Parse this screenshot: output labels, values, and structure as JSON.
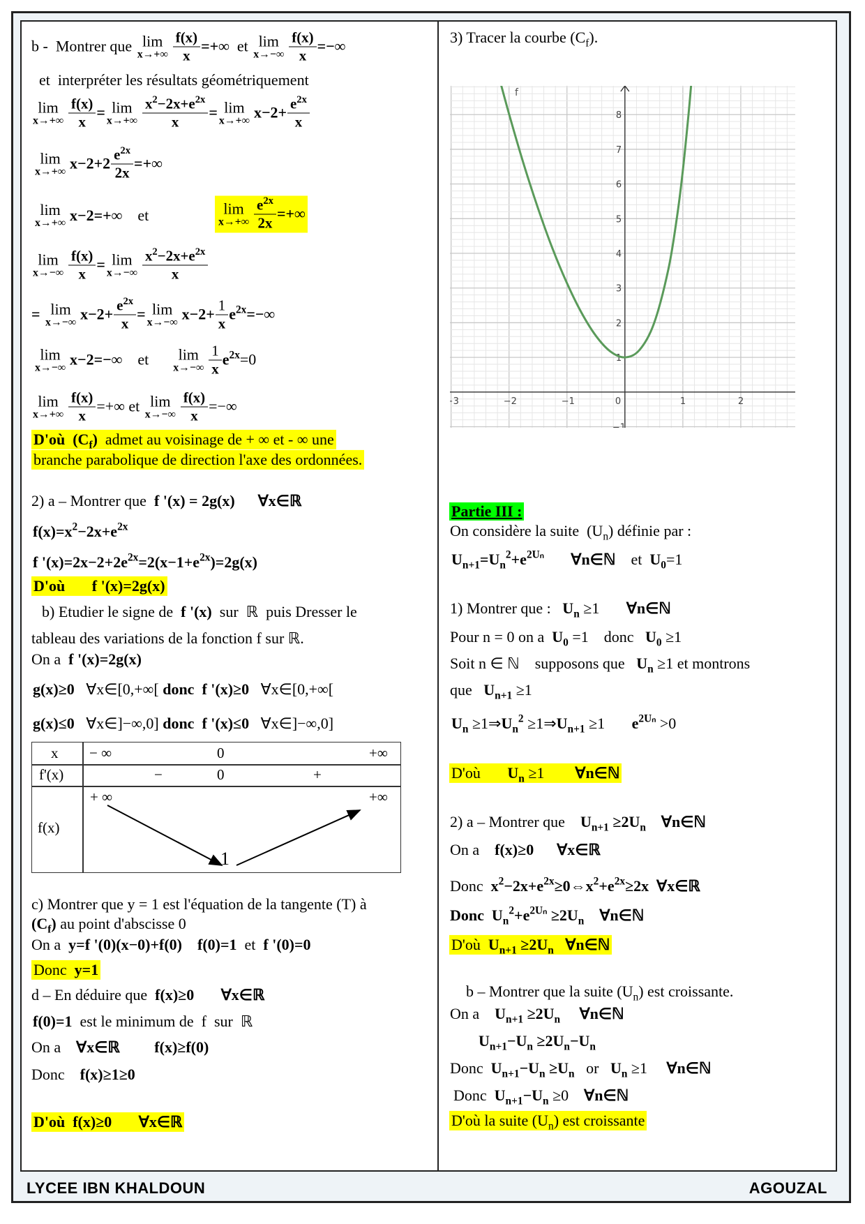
{
  "colors": {
    "highlight": "#ffff00",
    "partie_highlight": "#00ff00",
    "curve": "#5a9a5a"
  },
  "footer": {
    "school": "LYCEE  IBN KHALDOUN",
    "author": "AGOUZAL"
  },
  "left": {
    "lines": [
      [
        "b -  Montrer que ",
        {
          "l": "x→+∞"
        },
        {
          "f": [
            [
              {
                "t": "f(x)",
                "b": 1
              }
            ],
            [
              {
                "t": "x",
                "b": 1
              }
            ]
          ]
        },
        {
          "t": "=+∞",
          "b": 1
        },
        "  et ",
        {
          "l": "x→−∞"
        },
        {
          "f": [
            [
              {
                "t": "f(x)",
                "b": 1
              }
            ],
            [
              {
                "t": "x",
                "b": 1
              }
            ]
          ]
        },
        {
          "t": "=−∞",
          "b": 1
        }
      ],
      [
        "et  interpréter les résultats géométriquement"
      ],
      [
        {
          "l": "x→+∞"
        },
        {
          "f": [
            [
              {
                "t": "f(x)",
                "b": 1
              }
            ],
            [
              {
                "t": "x",
                "b": 1
              }
            ]
          ]
        },
        {
          "t": "=",
          "b": 1
        },
        {
          "l": "x→+∞"
        },
        {
          "f": [
            [
              {
                "t": "x",
                "b": 1,
                "sup": "2"
              },
              {
                "t": "−2x+e",
                "b": 1,
                "sup": "2x"
              }
            ],
            [
              {
                "t": "x",
                "b": 1
              }
            ]
          ]
        },
        {
          "t": "=",
          "b": 1
        },
        {
          "l": "x→+∞"
        },
        {
          "t": "x−2+",
          "b": 1
        },
        {
          "f": [
            [
              {
                "t": "e",
                "b": 1,
                "sup": "2x"
              }
            ],
            [
              {
                "t": "x",
                "b": 1
              }
            ]
          ]
        }
      ],
      [
        {
          "l": "x→+∞"
        },
        {
          "t": "x−2+2",
          "b": 1
        },
        {
          "f": [
            [
              {
                "t": "e",
                "b": 1,
                "sup": "2x"
              }
            ],
            [
              {
                "t": "2x",
                "b": 1
              }
            ]
          ]
        },
        {
          "t": "=+∞",
          "b": 1
        }
      ],
      [
        {
          "l": "x→+∞"
        },
        {
          "t": "x−2=+∞",
          "b": 1
        },
        "    et"
      ],
      [
        {
          "l": "x→+∞"
        },
        {
          "f": [
            [
              {
                "t": "e",
                "b": 1,
                "sup": "2x"
              }
            ],
            [
              {
                "t": "2x",
                "b": 1
              }
            ]
          ]
        },
        {
          "t": "=+∞",
          "b": 1
        }
      ],
      [
        {
          "l": "x→−∞"
        },
        {
          "f": [
            [
              {
                "t": "f(x)",
                "b": 1
              }
            ],
            [
              {
                "t": "x",
                "b": 1
              }
            ]
          ]
        },
        {
          "t": "=",
          "b": 1
        },
        {
          "l": "x→−∞"
        },
        {
          "f": [
            [
              {
                "t": "x",
                "b": 1,
                "sup": "2"
              },
              {
                "t": "−2x+e",
                "b": 1,
                "sup": "2x"
              }
            ],
            [
              {
                "t": "x",
                "b": 1
              }
            ]
          ]
        }
      ],
      [
        {
          "t": "= ",
          "b": 1
        },
        {
          "l": "x→−∞"
        },
        {
          "t": "x−2+",
          "b": 1
        },
        {
          "f": [
            [
              {
                "t": "e",
                "b": 1,
                "sup": "2x"
              }
            ],
            [
              {
                "t": "x",
                "b": 1
              }
            ]
          ]
        },
        {
          "t": "=",
          "b": 1
        },
        {
          "l": "x→−∞"
        },
        {
          "t": "x−2+",
          "b": 1
        },
        {
          "f": [
            [
              {
                "t": "1"
              }
            ],
            [
              {
                "t": "x",
                "b": 1
              }
            ]
          ]
        },
        {
          "t": "e",
          "b": 1,
          "sup": "2x"
        },
        {
          "t": "=−∞",
          "b": 1
        }
      ],
      [
        {
          "l": "x→−∞"
        },
        {
          "t": "x−2=−∞",
          "b": 1
        },
        "    et      ",
        {
          "l": "x→−∞"
        },
        {
          "f": [
            [
              {
                "t": "1"
              }
            ],
            [
              {
                "t": "x",
                "b": 1
              }
            ]
          ]
        },
        {
          "t": "e",
          "b": 1,
          "sup": "2x"
        },
        {
          "t": "=0"
        }
      ],
      [
        {
          "l": "x→+∞"
        },
        {
          "f": [
            [
              {
                "t": "f(x)",
                "b": 1
              }
            ],
            [
              {
                "t": "x",
                "b": 1
              }
            ]
          ]
        },
        {
          "t": "=+∞"
        },
        " et ",
        {
          "l": "x→−∞"
        },
        {
          "f": [
            [
              {
                "t": "f(x)",
                "b": 1
              }
            ],
            [
              {
                "t": "x",
                "b": 1
              }
            ]
          ]
        },
        {
          "t": "=−∞"
        }
      ],
      [
        {
          "t": "D'où  (C",
          "b": 1
        },
        {
          "t": "",
          "b": 1,
          "sub": "f"
        },
        {
          "t": ")",
          "b": 1
        },
        "  admet au voisinage de + ∞ et - ∞ une"
      ],
      [
        "branche parabolique de direction l'axe des ordonnées."
      ],
      [
        "2) a – Montrer que  ",
        {
          "t": "f '(x) = 2g(x)",
          "b": 1
        },
        "      ",
        {
          "t": "∀x∈ℝ",
          "b": 1
        }
      ],
      [
        {
          "t": "f(x)=x",
          "b": 1,
          "sup": "2"
        },
        {
          "t": "−2x+e",
          "b": 1,
          "sup": "2x"
        }
      ],
      [
        {
          "t": "f '(x)=2x−2+2e",
          "b": 1,
          "sup": "2x"
        },
        {
          "t": "=2(x−1+e",
          "b": 1,
          "sup": "2x"
        },
        {
          "t": ")=2g(x)",
          "b": 1
        }
      ],
      [
        {
          "t": "D'où",
          "b": 1
        },
        "       ",
        {
          "t": "f '(x)=2g(x)",
          "b": 1
        }
      ],
      [
        "b) Etudier le signe de  ",
        {
          "t": "f '(x)",
          "b": 1
        },
        "  sur  ℝ  puis Dresser le"
      ],
      [
        "tableau des variations de la fonction f sur ℝ."
      ],
      [
        "On a  ",
        {
          "t": "f '(x)=2g(x)",
          "b": 1
        }
      ],
      [
        {
          "t": "g(x)≥0",
          "b": 1
        },
        "   ∀x∈[0,+∞[ ",
        {
          "t": "donc  f '(x)≥0",
          "b": 1
        },
        "   ∀x∈[0,+∞["
      ],
      [
        {
          "t": "g(x)≤0",
          "b": 1
        },
        "   ∀x∈]−∞,0] ",
        {
          "t": "donc  f '(x)≤0",
          "b": 1
        },
        "   ∀x∈]−∞,0]"
      ],
      [
        "c) Montrer que y = 1 est l'équation de la tangente (T) à"
      ],
      [
        {
          "t": "(C",
          "b": 1
        },
        {
          "t": "",
          "b": 1,
          "sub": "f"
        },
        {
          "t": ")",
          "b": 1
        },
        " au point d'abscisse 0"
      ],
      [
        "On a  ",
        {
          "t": "y=f '(0)(x−0)+f(0)",
          "b": 1
        },
        "    ",
        {
          "t": "f(0)=1",
          "b": 1
        },
        "  et  ",
        {
          "t": "f '(0)=0",
          "b": 1
        }
      ],
      [
        "Donc  ",
        {
          "t": "y=1",
          "b": 1
        }
      ],
      [
        "d – En déduire que  ",
        {
          "t": "f(x)≥0",
          "b": 1
        },
        "       ",
        {
          "t": "∀x∈ℝ",
          "b": 1
        }
      ],
      [
        {
          "t": "f(0)=1",
          "b": 1
        },
        "  est le minimum de  f  sur  ℝ"
      ],
      [
        "On a    ",
        {
          "t": "∀x∈ℝ",
          "b": 1
        },
        "         ",
        {
          "t": "f(x)≥f(0)",
          "b": 1
        }
      ],
      [
        "Donc    ",
        {
          "t": "f(x)≥1≥0",
          "b": 1
        }
      ],
      [
        {
          "t": "D'où  f(x)≥0",
          "b": 1
        },
        "       ",
        {
          "t": "∀x∈ℝ",
          "b": 1
        }
      ]
    ],
    "table": {
      "row_x": "x",
      "row_fp": "f'(x)",
      "row_f": "f(x)",
      "x_values": [
        "− ∞",
        "0",
        "+∞"
      ],
      "fp_signs": [
        "−",
        "0",
        "+"
      ],
      "f_values": [
        "+ ∞",
        "1",
        "+∞"
      ]
    }
  },
  "right": {
    "lines": [
      [
        "3) Tracer la courbe (C",
        {
          "t": "",
          "sub": "f"
        },
        ")."
      ],
      [
        {
          "t": "Partie III :",
          "b": 1
        }
      ],
      [
        "On considère la suite  (U",
        {
          "t": "",
          "sub": "n"
        },
        ") définie par :"
      ],
      [
        {
          "t": "U",
          "b": 1,
          "sub": "n+1"
        },
        {
          "t": "=U",
          "b": 1,
          "sub": "n",
          "sup": "2"
        },
        {
          "t": "+e",
          "b": 1,
          "sup": "2Uₙ"
        },
        "       ",
        {
          "t": "∀n∈ℕ",
          "b": 1
        },
        "    et  ",
        {
          "t": "U",
          "b": 1,
          "sub": "0"
        },
        {
          "t": "=1"
        }
      ],
      [
        "1) Montrer que :   ",
        {
          "t": "U",
          "b": 1,
          "sub": "n"
        },
        " ≥1",
        "       ",
        {
          "t": "∀n∈ℕ",
          "b": 1
        }
      ],
      [
        "Pour n = 0 on a  ",
        {
          "t": "U",
          "b": 1,
          "sub": "0"
        },
        " =1",
        "    donc   ",
        {
          "t": "U",
          "b": 1,
          "sub": "0"
        },
        " ≥1"
      ],
      [
        "Soit n ∈ ℕ    supposons que   ",
        {
          "t": "U",
          "b": 1,
          "sub": "n"
        },
        " ≥1 et montrons"
      ],
      [
        "que   ",
        {
          "t": "U",
          "b": 1,
          "sub": "n+1"
        },
        " ≥1"
      ],
      [
        {
          "t": "U",
          "b": 1,
          "sub": "n"
        },
        " ≥1⇒",
        {
          "t": "U",
          "b": 1,
          "sub": "n",
          "sup": "2"
        },
        " ≥1⇒",
        {
          "t": "U",
          "b": 1,
          "sub": "n+1"
        },
        " ≥1",
        "       ",
        {
          "t": "e",
          "b": 1,
          "sup": "2Uₙ"
        },
        " >0"
      ],
      [
        "D'où       ",
        {
          "t": "U",
          "b": 1,
          "sub": "n"
        },
        " ≥1",
        "        ",
        {
          "t": "∀n∈ℕ",
          "b": 1
        }
      ],
      [
        "2) a – Montrer que    ",
        {
          "t": "U",
          "b": 1,
          "sub": "n+1"
        },
        {
          "t": " ≥2U",
          "b": 1,
          "sub": "n"
        },
        "    ",
        {
          "t": "∀n∈ℕ",
          "b": 1
        }
      ],
      [
        "On a    ",
        {
          "t": "f(x)≥0",
          "b": 1
        },
        "      ",
        {
          "t": "∀x∈ℝ",
          "b": 1
        }
      ],
      [
        "Donc  ",
        {
          "t": "x",
          "b": 1,
          "sup": "2"
        },
        {
          "t": "−2x+e",
          "b": 1,
          "sup": "2x"
        },
        {
          "t": "≥0⇔x",
          "b": 1,
          "sup": "2"
        },
        {
          "t": "+e",
          "b": 1,
          "sup": "2x"
        },
        {
          "t": "≥2x",
          "b": 1
        },
        "  ",
        {
          "t": "∀x∈ℝ",
          "b": 1
        }
      ],
      [
        {
          "t": "Donc  U",
          "b": 1,
          "sub": "n",
          "sup": "2"
        },
        {
          "t": "+e",
          "b": 1,
          "sup": "2Uₙ"
        },
        {
          "t": " ≥2U",
          "b": 1,
          "sub": "n"
        },
        "    ",
        {
          "t": "∀n∈ℕ",
          "b": 1
        }
      ],
      [
        "D'où  ",
        {
          "t": "U",
          "b": 1,
          "sub": "n+1"
        },
        {
          "t": " ≥2U",
          "b": 1,
          "sub": "n"
        },
        "   ",
        {
          "t": "∀n∈ℕ",
          "b": 1
        }
      ],
      [
        "b – Montrer que la suite (U",
        {
          "t": "",
          "sub": "n"
        },
        ") est croissante."
      ],
      [
        "On a    ",
        {
          "t": "U",
          "b": 1,
          "sub": "n+1"
        },
        {
          "t": " ≥2U",
          "b": 1,
          "sub": "n"
        },
        "     ",
        {
          "t": "∀n∈ℕ",
          "b": 1
        }
      ],
      [
        {
          "t": "U",
          "b": 1,
          "sub": "n+1"
        },
        {
          "t": "−U",
          "b": 1,
          "sub": "n"
        },
        {
          "t": " ≥2U",
          "b": 1,
          "sub": "n"
        },
        {
          "t": "−U",
          "b": 1,
          "sub": "n"
        }
      ],
      [
        "Donc  ",
        {
          "t": "U",
          "b": 1,
          "sub": "n+1"
        },
        {
          "t": "−U",
          "b": 1,
          "sub": "n"
        },
        {
          "t": " ≥U",
          "b": 1,
          "sub": "n"
        },
        "   or   ",
        {
          "t": "U",
          "b": 1,
          "sub": "n"
        },
        " ≥1",
        "     ",
        {
          "t": "∀n∈ℕ",
          "b": 1
        }
      ],
      [
        "Donc  ",
        {
          "t": "U",
          "b": 1,
          "sub": "n+1"
        },
        {
          "t": "−U",
          "b": 1,
          "sub": "n"
        },
        " ≥0",
        "    ",
        {
          "t": "∀n∈ℕ",
          "b": 1
        }
      ],
      [
        "D'où la suite (U",
        {
          "t": "",
          "sub": "n"
        },
        ") est croissante"
      ]
    ]
  },
  "chart_data": {
    "type": "line",
    "series": [
      {
        "name": "f",
        "x": [
          -2.2,
          -2,
          -1.75,
          -1.5,
          -1.25,
          -1,
          -0.75,
          -0.5,
          -0.25,
          0,
          0.25,
          0.5,
          0.75,
          0.9,
          1,
          1.1,
          1.15
        ],
        "y": [
          9.25,
          8.02,
          6.59,
          5.3,
          4.14,
          3.14,
          2.29,
          1.62,
          1.17,
          1,
          1.21,
          1.97,
          3.54,
          5.06,
          6.39,
          8.04,
          9.0
        ]
      }
    ],
    "xticks": [
      "−3",
      "−2",
      "−1",
      "0",
      "1",
      "2"
    ],
    "yticks": [
      "1",
      "2",
      "3",
      "4",
      "5",
      "6",
      "7",
      "8",
      "−1"
    ],
    "xlim": [
      -3.02,
      2.94
    ],
    "ylim": [
      -1.03,
      8.83
    ],
    "grid": true
  }
}
